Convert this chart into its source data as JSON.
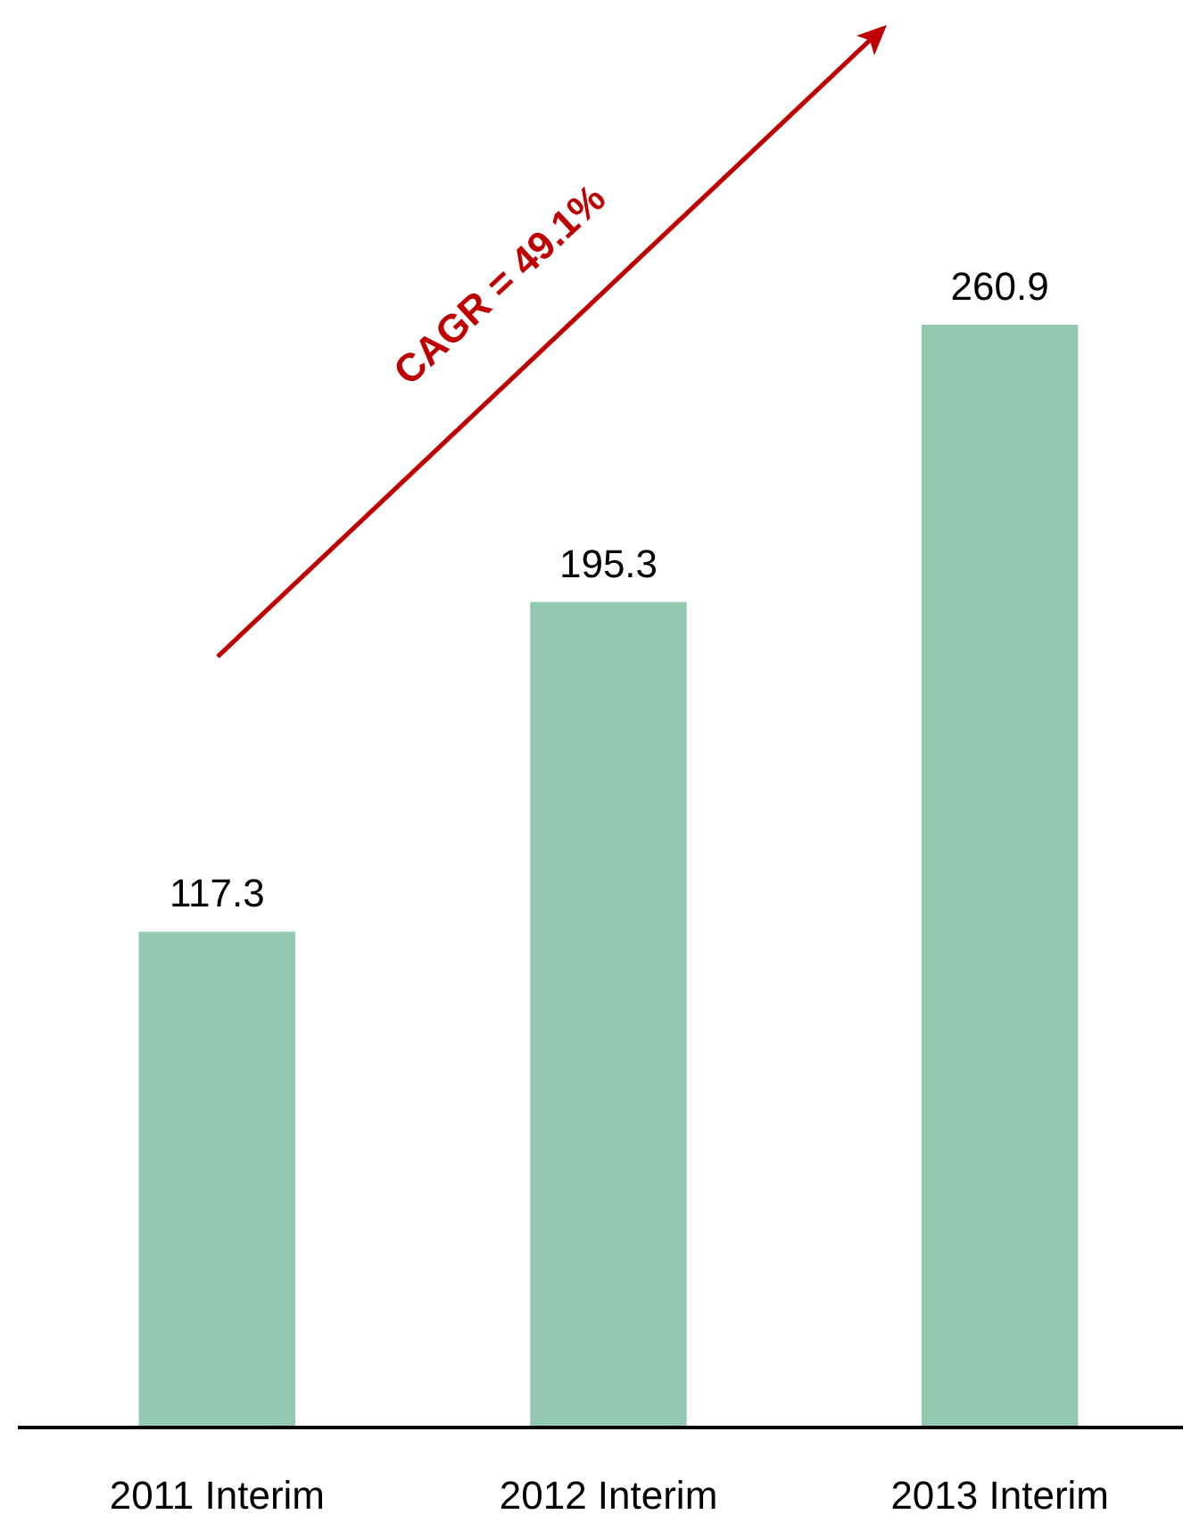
{
  "chart_data": {
    "type": "bar",
    "categories": [
      "2011 Interim",
      "2012 Interim",
      "2013 Interim"
    ],
    "values": [
      117.3,
      195.3,
      260.9
    ],
    "color": "#93c9b0",
    "data_labels": true,
    "annotations": [
      "CAGR = 49.1%"
    ]
  }
}
